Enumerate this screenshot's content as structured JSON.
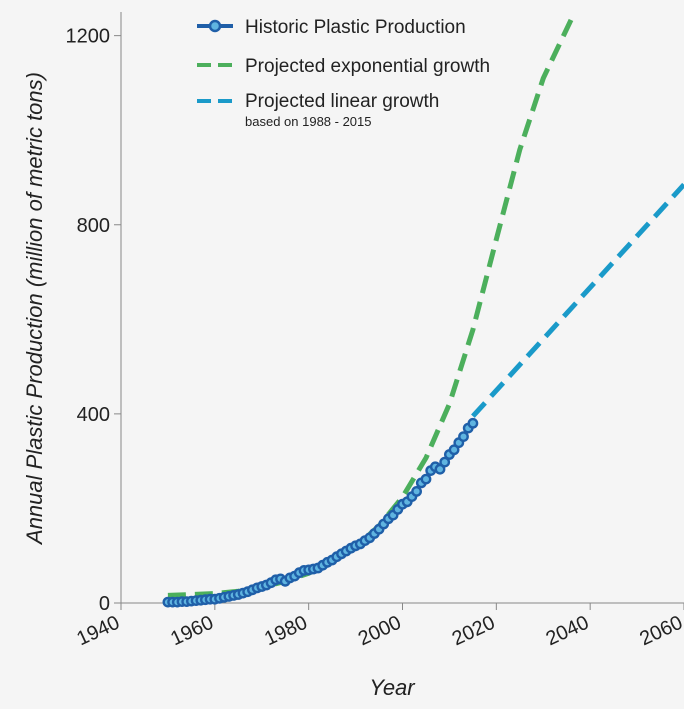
{
  "chart_data": {
    "type": "line",
    "xlabel": "Year",
    "ylabel": "Annual Plastic Production (million of metric tons)",
    "xlim": [
      1940,
      2060
    ],
    "ylim": [
      0,
      1250
    ],
    "xticks": [
      1940,
      1960,
      1980,
      2000,
      2020,
      2040,
      2060
    ],
    "yticks": [
      0,
      400,
      800,
      1200
    ],
    "grid": false,
    "legend_position": "top-center",
    "series": [
      {
        "name": "Historic Plastic Production",
        "style": "line-with-markers",
        "color": "#1f5fa8",
        "marker_fill": "#5fb4e0",
        "x": [
          1950,
          1951,
          1952,
          1953,
          1954,
          1955,
          1956,
          1957,
          1958,
          1959,
          1960,
          1961,
          1962,
          1963,
          1964,
          1965,
          1966,
          1967,
          1968,
          1969,
          1970,
          1971,
          1972,
          1973,
          1974,
          1975,
          1976,
          1977,
          1978,
          1979,
          1980,
          1981,
          1982,
          1983,
          1984,
          1985,
          1986,
          1987,
          1988,
          1989,
          1990,
          1991,
          1992,
          1993,
          1994,
          1995,
          1996,
          1997,
          1998,
          1999,
          2000,
          2001,
          2002,
          2003,
          2004,
          2005,
          2006,
          2007,
          2008,
          2009,
          2010,
          2011,
          2012,
          2013,
          2014,
          2015
        ],
        "y": [
          2,
          2,
          2,
          3,
          3,
          4,
          5,
          6,
          7,
          8,
          8,
          10,
          12,
          14,
          16,
          18,
          21,
          24,
          28,
          32,
          35,
          38,
          43,
          49,
          51,
          46,
          53,
          57,
          64,
          69,
          70,
          72,
          74,
          80,
          86,
          91,
          98,
          104,
          110,
          116,
          121,
          125,
          132,
          138,
          147,
          156,
          167,
          178,
          186,
          198,
          209,
          214,
          225,
          236,
          254,
          262,
          280,
          288,
          283,
          298,
          314,
          324,
          339,
          352,
          370,
          380
        ]
      },
      {
        "name": "Projected exponential growth",
        "style": "dashed",
        "color": "#4caf5c",
        "x": [
          1950,
          1955,
          1960,
          1965,
          1970,
          1975,
          1980,
          1985,
          1990,
          1995,
          2000,
          2005,
          2010,
          2015,
          2020,
          2025,
          2030,
          2036
        ],
        "y": [
          16,
          18,
          20,
          25,
          33,
          46,
          63,
          87,
          119,
          163,
          224,
          307,
          421,
          578,
          769,
          959,
          1110,
          1235
        ]
      },
      {
        "name": "Projected linear growth",
        "subtitle": "based on 1988 - 2015",
        "style": "dashed",
        "color": "#1a9ac9",
        "x": [
          2015,
          2060
        ],
        "y": [
          395,
          885
        ]
      }
    ]
  }
}
